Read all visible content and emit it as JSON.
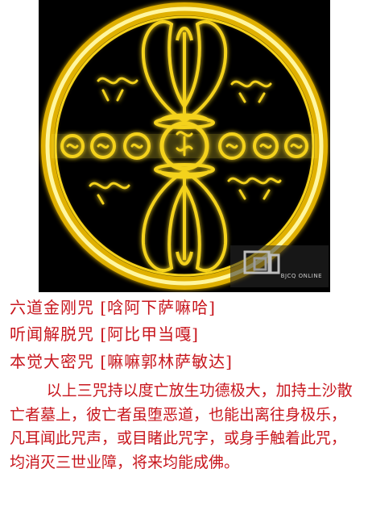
{
  "emblem": {
    "colors": {
      "background": "#000000",
      "gold": "#f4d21b",
      "glow": "#ffe85a",
      "dark_gold": "#b07a00"
    },
    "watermark_text": "BJCQ ONLINE"
  },
  "mantras": [
    "六道金刚咒 [唅阿下萨嘛哈]",
    "听闻解脱咒 [阿比甲当嘎]",
    "本觉大密咒 [嘛嘛郭林萨敏达]"
  ],
  "description": "以上三咒持以度亡放生功德极大，加持土沙散亡者墓上，彼亡者虽堕恶道，也能出离往身极乐，凡耳闻此咒声，或目睹此咒字，或身手触着此咒，均消灭三世业障，将来均能成佛。",
  "colors": {
    "text": "#c8161d"
  }
}
